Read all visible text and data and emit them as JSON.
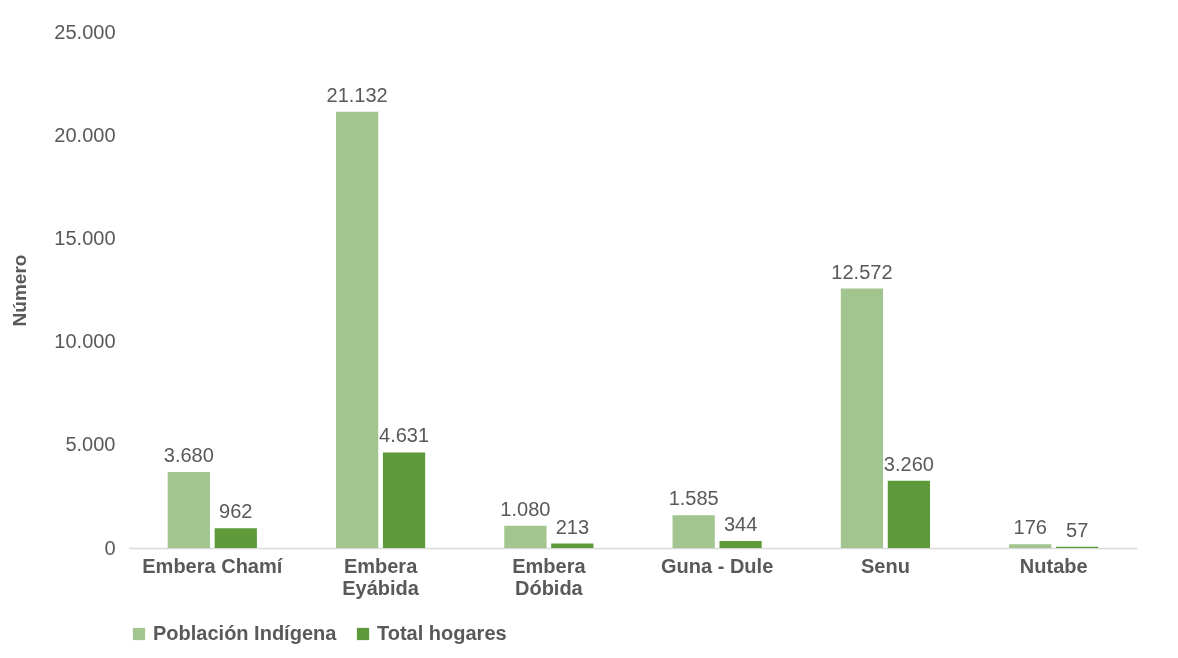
{
  "chart_data": {
    "type": "bar",
    "ylabel": "Número",
    "categories": [
      "Embera Chamí",
      "Embera Eyábida",
      "Embera Dóbida",
      "Guna - Dule",
      "Senu",
      "Nutabe"
    ],
    "series": [
      {
        "name": "Población Indígena",
        "color": "#a2c48e",
        "values": [
          3680,
          21132,
          1080,
          1585,
          12572,
          176
        ],
        "value_labels": [
          "3.680",
          "21.132",
          "1.080",
          "1.585",
          "12.572",
          "176"
        ]
      },
      {
        "name": "Total hogares",
        "color": "#5e9a3a",
        "values": [
          962,
          4631,
          213,
          344,
          3260,
          57
        ],
        "value_labels": [
          "962",
          "4.631",
          "213",
          "344",
          "3.260",
          "57"
        ]
      }
    ],
    "ylim": [
      0,
      25000
    ],
    "yticks": [
      {
        "value": 0,
        "label": "0"
      },
      {
        "value": 5000,
        "label": "5.000"
      },
      {
        "value": 10000,
        "label": "10.000"
      },
      {
        "value": 15000,
        "label": "15.000"
      },
      {
        "value": 20000,
        "label": "20.000"
      },
      {
        "value": 25000,
        "label": "25.000"
      }
    ],
    "grid": false,
    "legend": "bottom"
  }
}
